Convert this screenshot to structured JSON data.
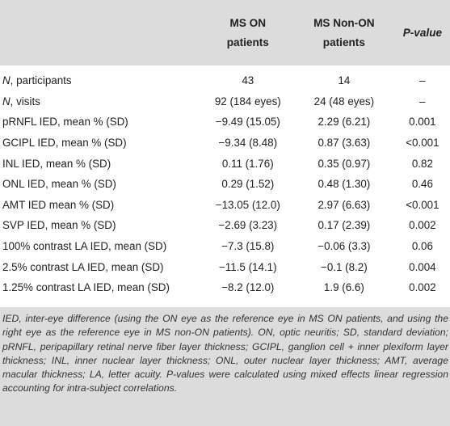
{
  "header": {
    "col1": "",
    "col2_line1": "MS ON",
    "col2_line2": "patients",
    "col3_line1": "MS Non-ON",
    "col3_line2": "patients",
    "col4": "P-value"
  },
  "rows": [
    {
      "label_prefix": "N",
      "label_rest": ", participants",
      "on": "43",
      "nonon": "14",
      "p": "–"
    },
    {
      "label_prefix": "N",
      "label_rest": ", visits",
      "on": "92 (184 eyes)",
      "nonon": "24 (48 eyes)",
      "p": "–"
    },
    {
      "label_prefix": "",
      "label_rest": "pRNFL IED, mean % (SD)",
      "on": "−9.49 (15.05)",
      "nonon": "2.29 (6.21)",
      "p": "0.001"
    },
    {
      "label_prefix": "",
      "label_rest": "GCIPL IED, mean % (SD)",
      "on": "−9.34 (8.48)",
      "nonon": "0.87 (3.63)",
      "p": "<0.001"
    },
    {
      "label_prefix": "",
      "label_rest": "INL IED, mean % (SD)",
      "on": "0.11 (1.76)",
      "nonon": "0.35 (0.97)",
      "p": "0.82"
    },
    {
      "label_prefix": "",
      "label_rest": "ONL IED, mean % (SD)",
      "on": "0.29 (1.52)",
      "nonon": "0.48 (1.30)",
      "p": "0.46"
    },
    {
      "label_prefix": "",
      "label_rest": "AMT IED mean % (SD)",
      "on": "−13.05 (12.0)",
      "nonon": "2.97 (6.63)",
      "p": "<0.001"
    },
    {
      "label_prefix": "",
      "label_rest": "SVP IED, mean % (SD)",
      "on": "−2.69 (3.23)",
      "nonon": "0.17 (2.39)",
      "p": "0.002"
    },
    {
      "label_prefix": "",
      "label_rest": "100% contrast LA IED, mean (SD)",
      "on": "−7.3 (15.8)",
      "nonon": "−0.06 (3.3)",
      "p": "0.06"
    },
    {
      "label_prefix": "",
      "label_rest": "2.5% contrast LA IED, mean (SD)",
      "on": "−11.5 (14.1)",
      "nonon": "−0.1 (8.2)",
      "p": "0.004"
    },
    {
      "label_prefix": "",
      "label_rest": "1.25% contrast LA IED, mean (SD)",
      "on": "−8.2 (12.0)",
      "nonon": "1.9 (6.6)",
      "p": "0.002"
    }
  ],
  "footnote": "IED, inter-eye difference (using the ON eye as the reference eye in MS ON patients, and using the right eye as the reference eye in MS non-ON patients). ON, optic neuritis; SD, standard deviation; pRNFL, peripapillary retinal nerve fiber layer thickness; GCIPL, ganglion cell + inner plexiform layer thickness; INL, inner nuclear layer thickness; ONL, outer nuclear layer thickness; AMT, average macular thickness; LA, letter acuity. P-values were calculated using mixed effects linear regression accounting for intra-subject correlations."
}
